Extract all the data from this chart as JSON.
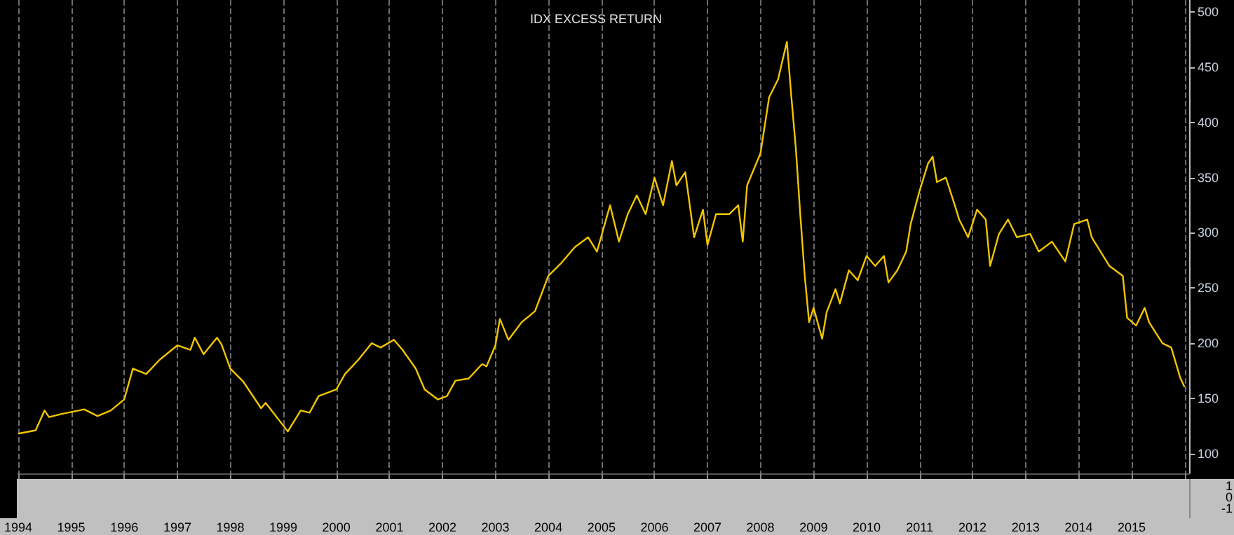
{
  "chart_data": [
    {
      "type": "line",
      "title": "IDX EXCESS RETURN",
      "x": [
        "1994-01",
        "1994-05",
        "1994-07",
        "1994-08",
        "1994-11",
        "1995-04",
        "1995-07",
        "1995-10",
        "1996-01",
        "1996-03",
        "1996-06",
        "1996-09",
        "1997-01",
        "1997-04",
        "1997-05",
        "1997-07",
        "1997-10",
        "1997-11",
        "1998-01",
        "1998-04",
        "1998-08",
        "1998-09",
        "1999-02",
        "1999-05",
        "1999-07",
        "1999-09",
        "2000-01",
        "2000-03",
        "2000-06",
        "2000-09",
        "2000-11",
        "2001-02",
        "2001-04",
        "2001-07",
        "2001-09",
        "2001-12",
        "2002-02",
        "2002-04",
        "2002-07",
        "2002-10",
        "2002-11",
        "2003-01",
        "2003-02",
        "2003-04",
        "2003-07",
        "2003-10",
        "2004-01",
        "2004-04",
        "2004-07",
        "2004-10",
        "2004-12",
        "2005-03",
        "2005-05",
        "2005-07",
        "2005-09",
        "2005-11",
        "2006-01",
        "2006-03",
        "2006-05",
        "2006-06",
        "2006-08",
        "2006-10",
        "2006-12",
        "2007-01",
        "2007-03",
        "2007-06",
        "2007-08",
        "2007-09",
        "2007-10",
        "2008-01",
        "2008-03",
        "2008-05",
        "2008-07",
        "2008-08",
        "2008-09",
        "2008-10",
        "2008-11",
        "2008-12",
        "2009-01",
        "2009-03",
        "2009-04",
        "2009-06",
        "2009-07",
        "2009-09",
        "2009-11",
        "2010-01",
        "2010-03",
        "2010-05",
        "2010-06",
        "2010-08",
        "2010-10",
        "2010-11",
        "2011-01",
        "2011-03",
        "2011-04",
        "2011-05",
        "2011-07",
        "2011-09",
        "2011-10",
        "2011-12",
        "2012-02",
        "2012-04",
        "2012-05",
        "2012-07",
        "2012-09",
        "2012-11",
        "2013-02",
        "2013-04",
        "2013-07",
        "2013-10",
        "2013-12",
        "2014-03",
        "2014-04",
        "2014-08",
        "2014-11",
        "2014-12",
        "2015-02",
        "2015-04",
        "2015-05",
        "2015-08",
        "2015-10",
        "2015-12",
        "2016-01"
      ],
      "series": [
        {
          "color": "#f2c500",
          "values": [
            118,
            121,
            139,
            133,
            136,
            140,
            134,
            139,
            149,
            177,
            172,
            185,
            198,
            194,
            205,
            190,
            205,
            199,
            177,
            165,
            141,
            146,
            120,
            139,
            137,
            152,
            158,
            172,
            185,
            200,
            196,
            203,
            194,
            177,
            158,
            149,
            152,
            166,
            168,
            181,
            179,
            198,
            222,
            203,
            219,
            229,
            261,
            273,
            287,
            296,
            283,
            325,
            292,
            317,
            334,
            317,
            350,
            325,
            365,
            343,
            355,
            296,
            321,
            289,
            317,
            317,
            325,
            292,
            343,
            372,
            423,
            439,
            473,
            423,
            376,
            317,
            261,
            219,
            232,
            204,
            228,
            249,
            236,
            266,
            257,
            279,
            270,
            279,
            255,
            266,
            283,
            308,
            338,
            363,
            369,
            346,
            350,
            325,
            312,
            296,
            321,
            312,
            270,
            299,
            312,
            296,
            299,
            283,
            292,
            274,
            308,
            312,
            296,
            270,
            261,
            223,
            216,
            232,
            219,
            200,
            196,
            169,
            160
          ]
        }
      ],
      "xlim": [
        "1994-01",
        "2016-02"
      ],
      "xticks": [
        "1994",
        "1995",
        "1996",
        "1997",
        "1998",
        "1999",
        "2000",
        "2001",
        "2002",
        "2003",
        "2004",
        "2005",
        "2006",
        "2007",
        "2008",
        "2009",
        "2010",
        "2011",
        "2012",
        "2013",
        "2014",
        "2015",
        {
          "value": "2016",
          "label": null
        }
      ],
      "ylim": [
        82,
        511
      ],
      "yticks": [
        100,
        150,
        200,
        250,
        300,
        350,
        400,
        450,
        500
      ],
      "grid": "x",
      "marker": "none",
      "line_style": "solid"
    },
    {
      "type": "other",
      "annotations": [
        "1",
        "0",
        "-1"
      ]
    }
  ]
}
